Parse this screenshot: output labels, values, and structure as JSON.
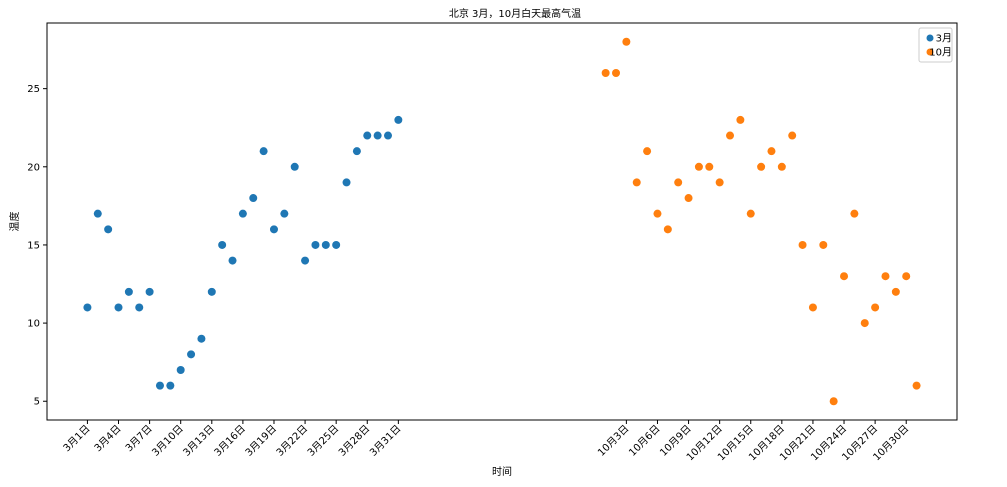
{
  "chart_data": {
    "type": "scatter",
    "title": "北京 3月，10月白天最高气温",
    "xlabel": "时间",
    "ylabel": "温度",
    "ylim": [
      3.8,
      29.2
    ],
    "yticks": [
      5,
      10,
      15,
      20,
      25
    ],
    "grid": false,
    "legend_position": "top-right",
    "xticks": [
      {
        "x": 1,
        "label": "3月1日"
      },
      {
        "x": 4,
        "label": "3月4日"
      },
      {
        "x": 7,
        "label": "3月7日"
      },
      {
        "x": 10,
        "label": "3月10日"
      },
      {
        "x": 13,
        "label": "3月13日"
      },
      {
        "x": 16,
        "label": "3月16日"
      },
      {
        "x": 19,
        "label": "3月19日"
      },
      {
        "x": 22,
        "label": "3月22日"
      },
      {
        "x": 25,
        "label": "3月25日"
      },
      {
        "x": 28,
        "label": "3月28日"
      },
      {
        "x": 31,
        "label": "3月31日"
      },
      {
        "x": 53,
        "label": "10月3日"
      },
      {
        "x": 56,
        "label": "10月6日"
      },
      {
        "x": 59,
        "label": "10月9日"
      },
      {
        "x": 62,
        "label": "10月12日"
      },
      {
        "x": 65,
        "label": "10月15日"
      },
      {
        "x": 68,
        "label": "10月18日"
      },
      {
        "x": 71,
        "label": "10月21日"
      },
      {
        "x": 74,
        "label": "10月24日"
      },
      {
        "x": 77,
        "label": "10月27日"
      },
      {
        "x": 80,
        "label": "10月30日"
      }
    ],
    "series": [
      {
        "name": "3月",
        "color": "#1f77b4",
        "x": [
          1,
          2,
          3,
          4,
          5,
          6,
          7,
          8,
          9,
          10,
          11,
          12,
          13,
          14,
          15,
          16,
          17,
          18,
          19,
          20,
          21,
          22,
          23,
          24,
          25,
          26,
          27,
          28,
          29,
          30,
          31
        ],
        "y": [
          11,
          17,
          16,
          11,
          12,
          11,
          12,
          6,
          6,
          7,
          8,
          9,
          12,
          15,
          14,
          17,
          18,
          21,
          16,
          17,
          20,
          14,
          15,
          15,
          15,
          19,
          21,
          22,
          22,
          22,
          23
        ]
      },
      {
        "name": "10月",
        "color": "#ff7f0e",
        "x": [
          51,
          52,
          53,
          54,
          55,
          56,
          57,
          58,
          59,
          60,
          61,
          62,
          63,
          64,
          65,
          66,
          67,
          68,
          69,
          70,
          71,
          72,
          73,
          74,
          75,
          76,
          77,
          78,
          79,
          80,
          81
        ],
        "y": [
          26,
          26,
          28,
          19,
          21,
          17,
          16,
          19,
          18,
          20,
          20,
          19,
          22,
          23,
          17,
          20,
          21,
          20,
          22,
          15,
          11,
          15,
          5,
          13,
          17,
          10,
          11,
          13,
          12,
          13,
          6
        ]
      }
    ]
  }
}
